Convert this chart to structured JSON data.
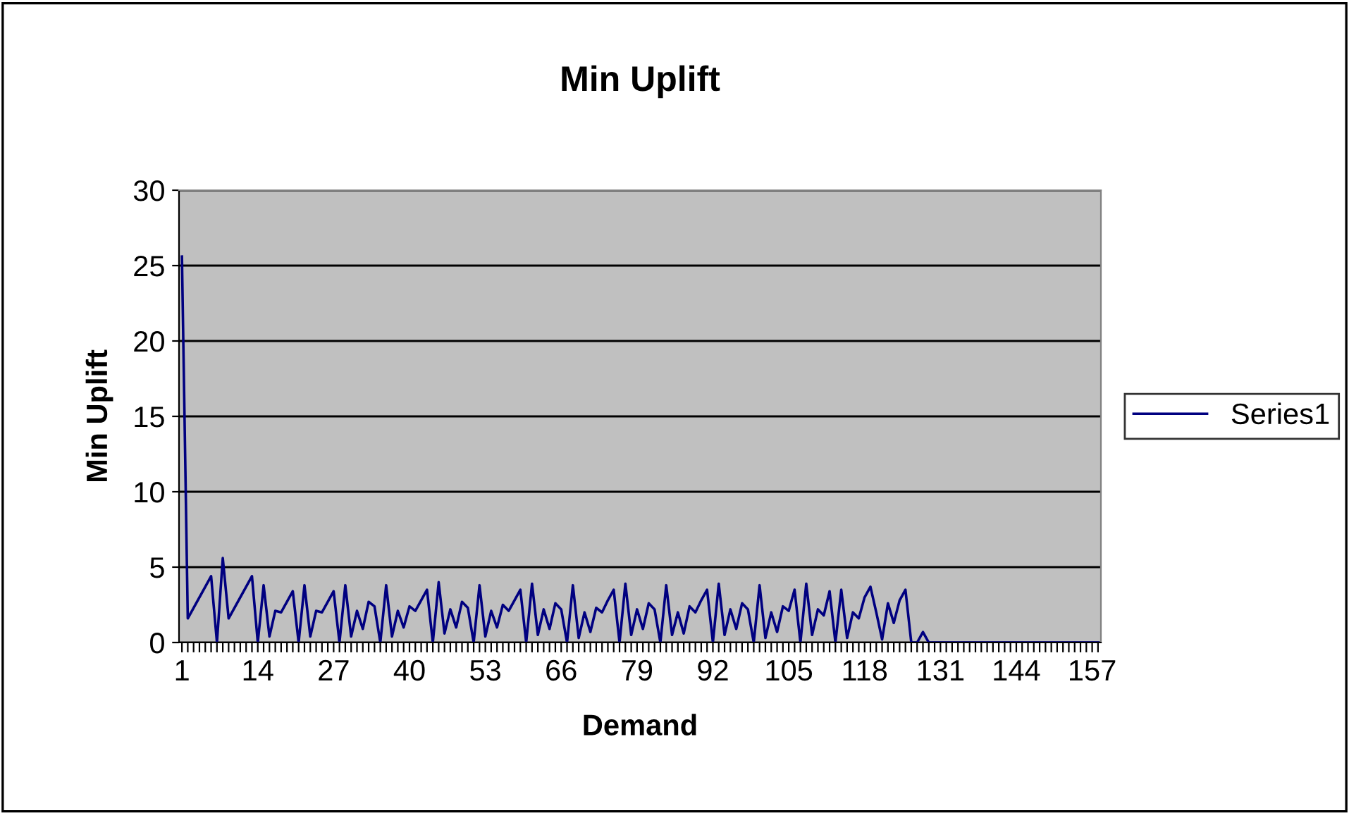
{
  "chart_data": {
    "type": "line",
    "title": "Min Uplift",
    "xlabel": "Demand",
    "ylabel": "Min Uplift",
    "categories": [
      "1",
      null,
      null,
      null,
      null,
      null,
      null,
      null,
      null,
      null,
      null,
      null,
      null,
      "14",
      null,
      null,
      null,
      null,
      null,
      null,
      null,
      null,
      null,
      null,
      null,
      null,
      "27",
      null,
      null,
      null,
      null,
      null,
      null,
      null,
      null,
      null,
      null,
      null,
      null,
      "40",
      null,
      null,
      null,
      null,
      null,
      null,
      null,
      null,
      null,
      null,
      null,
      null,
      "53",
      null,
      null,
      null,
      null,
      null,
      null,
      null,
      null,
      null,
      null,
      null,
      null,
      "66",
      null,
      null,
      null,
      null,
      null,
      null,
      null,
      null,
      null,
      null,
      null,
      null,
      "79",
      null,
      null,
      null,
      null,
      null,
      null,
      null,
      null,
      null,
      null,
      null,
      null,
      "92",
      null,
      null,
      null,
      null,
      null,
      null,
      null,
      null,
      null,
      null,
      null,
      null,
      "105",
      null,
      null,
      null,
      null,
      null,
      null,
      null,
      null,
      null,
      null,
      null,
      null,
      "118",
      null,
      null,
      null,
      null,
      null,
      null,
      null,
      null,
      null,
      null,
      null,
      null,
      "131",
      null,
      null,
      null,
      null,
      null,
      null,
      null,
      null,
      null,
      null,
      null,
      null,
      "144",
      null,
      null,
      null,
      null,
      null,
      null,
      null,
      null,
      null,
      null,
      null,
      null,
      "157",
      null
    ],
    "series": [
      {
        "name": "Series1",
        "color": "#000080",
        "values": [
          25.6,
          1.6,
          2.3,
          3.0,
          3.7,
          4.4,
          0,
          5.6,
          1.6,
          2.3,
          3.0,
          3.7,
          4.4,
          0,
          3.8,
          0.4,
          2.1,
          2.0,
          2.7,
          3.4,
          0,
          3.8,
          0.4,
          2.1,
          2.0,
          2.7,
          3.4,
          0,
          3.8,
          0.4,
          2.1,
          0.9,
          2.7,
          2.4,
          0,
          3.8,
          0.4,
          2.1,
          1.0,
          2.4,
          2.1,
          2.8,
          3.5,
          0,
          4.0,
          0.6,
          2.2,
          1.0,
          2.7,
          2.3,
          0,
          3.8,
          0.4,
          2.1,
          1.0,
          2.5,
          2.1,
          2.8,
          3.5,
          0,
          3.9,
          0.5,
          2.2,
          0.9,
          2.6,
          2.2,
          0,
          3.8,
          0.3,
          2.0,
          0.7,
          2.3,
          2.0,
          2.8,
          3.5,
          0,
          3.9,
          0.5,
          2.2,
          0.9,
          2.6,
          2.2,
          0,
          3.8,
          0.5,
          2.0,
          0.6,
          2.4,
          2.0,
          2.8,
          3.5,
          0,
          3.9,
          0.5,
          2.2,
          0.9,
          2.6,
          2.2,
          0,
          3.8,
          0.3,
          2.0,
          0.7,
          2.4,
          2.1,
          3.5,
          0,
          3.9,
          0.5,
          2.2,
          1.8,
          3.4,
          0,
          3.5,
          0.3,
          2.0,
          1.6,
          3.0,
          3.7,
          2.0,
          0.2,
          2.6,
          1.3,
          2.8,
          3.5,
          0,
          0,
          0.7,
          0,
          0,
          0,
          0,
          0,
          0,
          0,
          0,
          0,
          0,
          0,
          0,
          0,
          0,
          0,
          0,
          0,
          0,
          0,
          0,
          0,
          0,
          0,
          0,
          0,
          0,
          0,
          0,
          0,
          0
        ]
      }
    ],
    "ylim": [
      0,
      30
    ],
    "yticks": [
      0,
      5,
      10,
      15,
      20,
      25,
      30
    ],
    "grid": "y",
    "legend": "right",
    "marker": "none",
    "line_style": "solid"
  }
}
